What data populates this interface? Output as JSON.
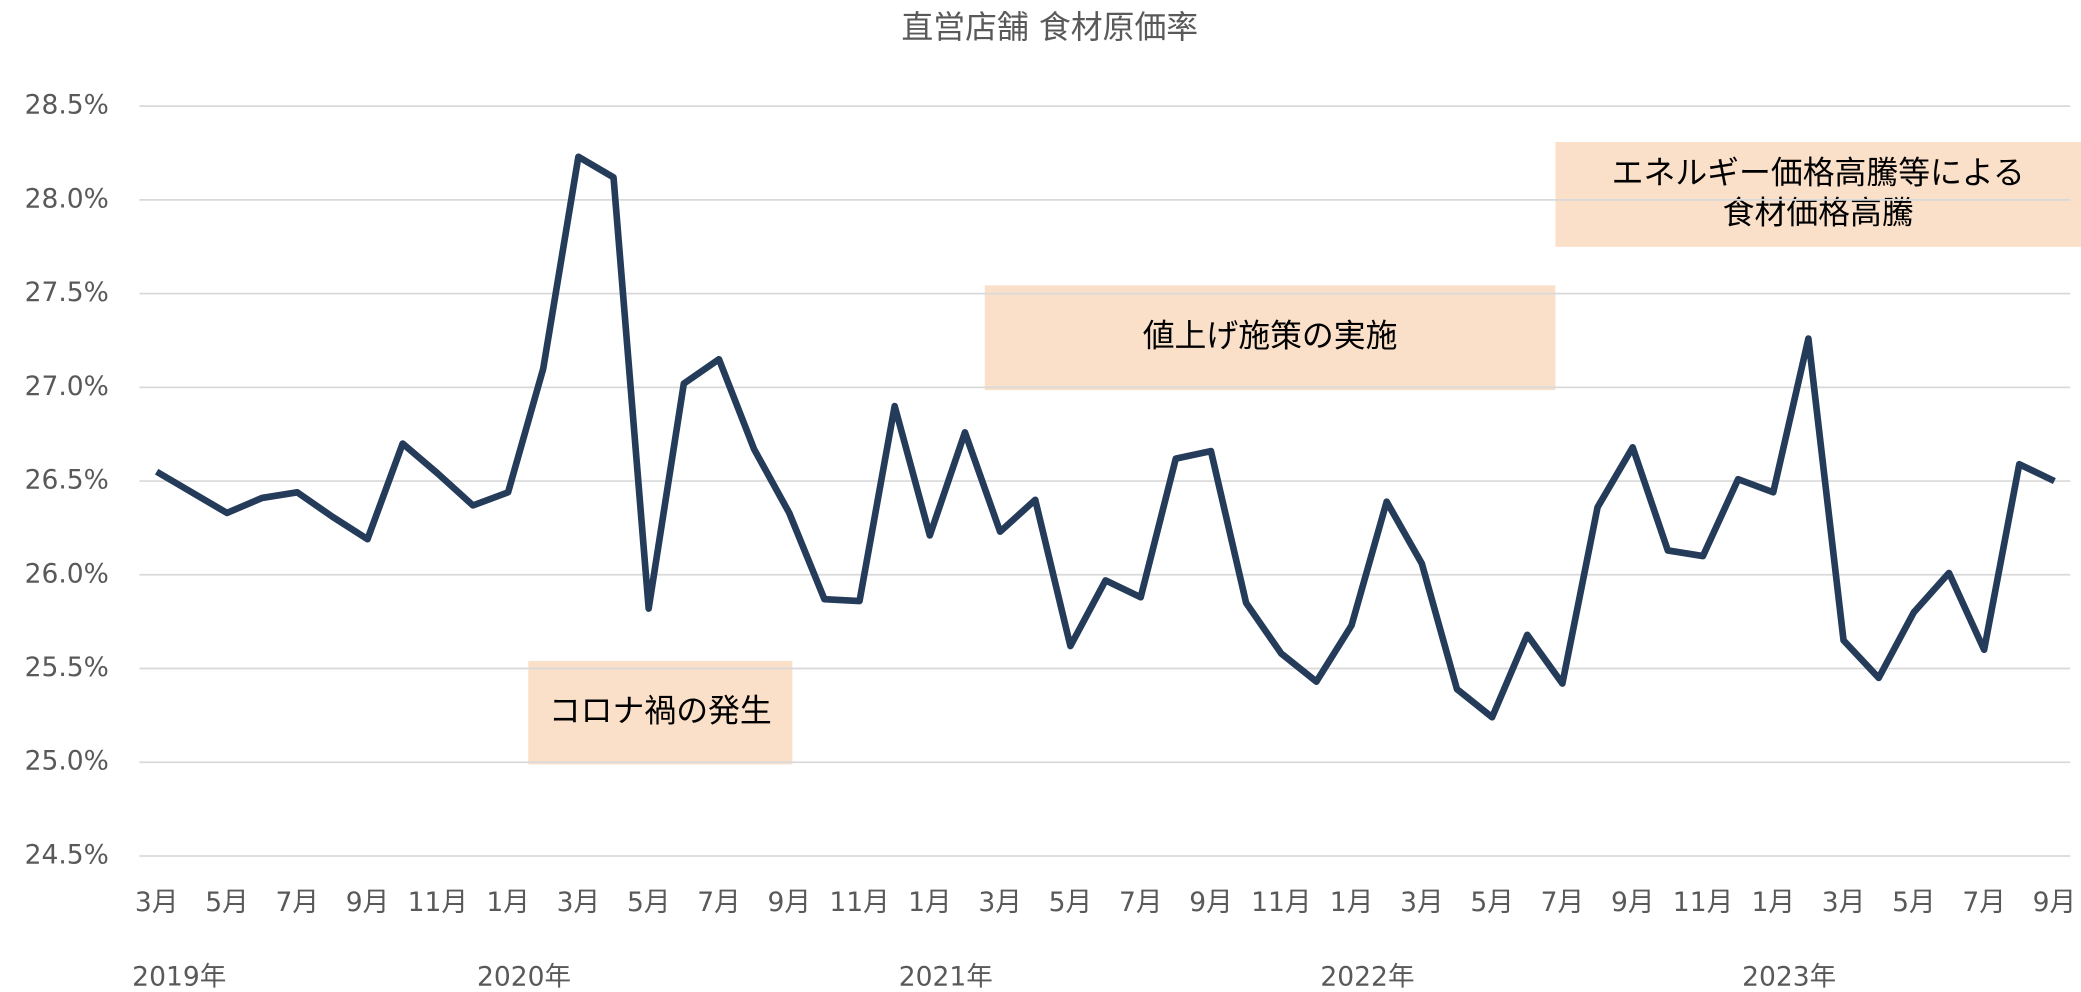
{
  "chart_data": {
    "type": "line",
    "title": "直営店舗 食材原価率",
    "categories": [
      "3月",
      null,
      "5月",
      null,
      "7月",
      null,
      "9月",
      null,
      "11月",
      null,
      "1月",
      null,
      "3月",
      null,
      "5月",
      null,
      "7月",
      null,
      "9月",
      null,
      "11月",
      null,
      "1月",
      null,
      "3月",
      null,
      "5月",
      null,
      "7月",
      null,
      "9月",
      null,
      "11月",
      null,
      "1月",
      null,
      "3月",
      null,
      "5月",
      null,
      "7月",
      null,
      "9月",
      null,
      "11月",
      null,
      "1月",
      null,
      "3月",
      null,
      "5月",
      null,
      "7月",
      null,
      "9月"
    ],
    "year_labels": [
      "2019年",
      "2020年",
      "2021年",
      "2022年",
      "2023年"
    ],
    "series": [
      {
        "name": "食材原価率",
        "color": "#243b5a",
        "values": [
          26.55,
          26.44,
          26.33,
          26.41,
          26.44,
          26.31,
          26.19,
          26.7,
          26.54,
          26.37,
          26.44,
          27.1,
          28.23,
          28.12,
          25.82,
          27.02,
          27.15,
          26.67,
          26.33,
          25.87,
          25.86,
          26.9,
          26.21,
          26.76,
          26.23,
          26.4,
          25.62,
          25.97,
          25.88,
          26.62,
          26.66,
          25.85,
          25.58,
          25.43,
          25.73,
          26.39,
          26.06,
          25.39,
          25.24,
          25.68,
          25.42,
          26.36,
          26.68,
          26.13,
          26.1,
          26.51,
          26.44,
          27.26,
          25.65,
          25.45,
          25.8,
          26.01,
          25.6,
          26.59,
          26.5
        ]
      }
    ],
    "ylim": [
      24.5,
      28.5
    ],
    "yticks": [
      {
        "value": 24.5,
        "label": "24.5%"
      },
      {
        "value": 25,
        "label": "25.0%"
      },
      {
        "value": 25.5,
        "label": "25.5%"
      },
      {
        "value": 26,
        "label": "26.0%"
      },
      {
        "value": 26.5,
        "label": "26.5%"
      },
      {
        "value": 27,
        "label": "27.0%"
      },
      {
        "value": 27.5,
        "label": "27.5%"
      },
      {
        "value": 28,
        "label": "28.0%"
      },
      {
        "value": 28.5,
        "label": "28.5%"
      }
    ],
    "grid": true,
    "annotations": [
      {
        "lines": [
          "コロナ禍の発生"
        ],
        "color": "#fbe0c9"
      },
      {
        "lines": [
          "値上げ施策の実施"
        ],
        "color": "#fbe0c9"
      },
      {
        "lines": [
          "エネルギー価格高騰等による",
          "食材価格高騰"
        ],
        "color": "#fbe0c9"
      }
    ]
  }
}
